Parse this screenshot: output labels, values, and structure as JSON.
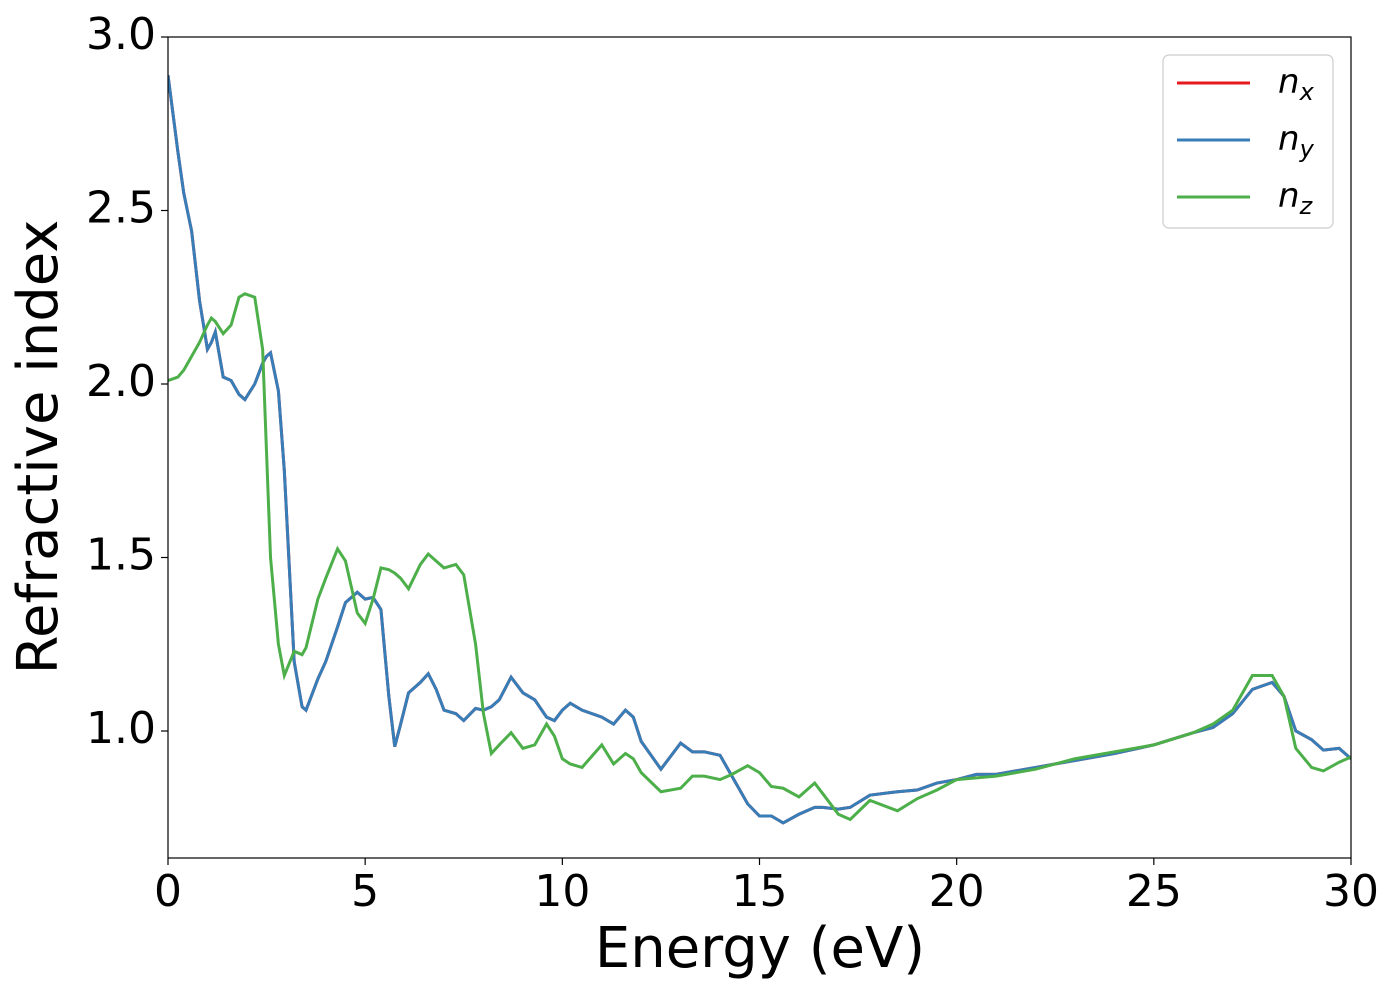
{
  "chart_data": {
    "type": "line",
    "xlabel": "Energy (eV)",
    "ylabel": "Refractive index",
    "xlim": [
      0,
      30
    ],
    "ylim": [
      0.634,
      3.0
    ],
    "xticks": [
      0,
      5,
      10,
      15,
      20,
      25,
      30
    ],
    "yticks": [
      {
        "value": 1,
        "label": "1.0"
      },
      {
        "value": 1.5,
        "label": "1.5"
      },
      {
        "value": 2,
        "label": "2.0"
      },
      {
        "value": 2.5,
        "label": "2.5"
      },
      {
        "value": 3,
        "label": "3.0"
      }
    ],
    "legend": "upper right",
    "grid": false,
    "x": [
      0,
      0.25,
      0.4,
      0.6,
      0.8,
      1.0,
      1.1,
      1.2,
      1.4,
      1.6,
      1.8,
      1.95,
      2.2,
      2.4,
      2.5,
      2.6,
      2.8,
      2.95,
      3.2,
      3.4,
      3.5,
      3.8,
      4.0,
      4.3,
      4.5,
      4.8,
      5.0,
      5.2,
      5.4,
      5.6,
      5.75,
      5.9,
      6.1,
      6.4,
      6.6,
      6.8,
      7.0,
      7.3,
      7.5,
      7.8,
      8.0,
      8.2,
      8.4,
      8.7,
      9.0,
      9.3,
      9.6,
      9.8,
      10.0,
      10.2,
      10.5,
      11.0,
      11.3,
      11.6,
      11.8,
      12.0,
      12.5,
      13.0,
      13.3,
      13.6,
      14.0,
      14.3,
      14.7,
      15.0,
      15.3,
      15.6,
      16.0,
      16.4,
      16.6,
      17.0,
      17.3,
      17.8,
      18.5,
      19.0,
      19.5,
      20.0,
      20.5,
      21.0,
      22.0,
      23.0,
      24.0,
      25.0,
      26.0,
      26.5,
      27.0,
      27.5,
      28.0,
      28.3,
      28.6,
      29.0,
      29.3,
      29.7,
      30.0
    ],
    "series": [
      {
        "name": "nx",
        "color": "#e41a1c",
        "values": [
          2.89,
          2.67,
          2.55,
          2.44,
          2.24,
          2.1,
          2.12,
          2.15,
          2.02,
          2.01,
          1.97,
          1.955,
          2.0,
          2.06,
          2.08,
          2.09,
          1.98,
          1.75,
          1.2,
          1.07,
          1.06,
          1.15,
          1.2,
          1.3,
          1.37,
          1.4,
          1.38,
          1.385,
          1.35,
          1.1,
          0.955,
          1.02,
          1.11,
          1.14,
          1.165,
          1.12,
          1.06,
          1.05,
          1.03,
          1.065,
          1.06,
          1.07,
          1.09,
          1.155,
          1.11,
          1.09,
          1.04,
          1.03,
          1.06,
          1.08,
          1.06,
          1.04,
          1.02,
          1.06,
          1.04,
          0.97,
          0.89,
          0.965,
          0.94,
          0.94,
          0.93,
          0.87,
          0.79,
          0.755,
          0.755,
          0.735,
          0.76,
          0.78,
          0.78,
          0.775,
          0.78,
          0.815,
          0.825,
          0.83,
          0.85,
          0.86,
          0.875,
          0.875,
          0.895,
          0.915,
          0.935,
          0.96,
          0.995,
          1.01,
          1.05,
          1.12,
          1.14,
          1.1,
          1.0,
          0.975,
          0.945,
          0.95,
          0.92
        ]
      },
      {
        "name": "ny",
        "color": "#377eb8",
        "values": [
          2.89,
          2.67,
          2.55,
          2.44,
          2.24,
          2.1,
          2.12,
          2.15,
          2.02,
          2.01,
          1.97,
          1.955,
          2.0,
          2.06,
          2.08,
          2.09,
          1.98,
          1.75,
          1.2,
          1.07,
          1.06,
          1.15,
          1.2,
          1.3,
          1.37,
          1.4,
          1.38,
          1.385,
          1.35,
          1.1,
          0.955,
          1.02,
          1.11,
          1.14,
          1.165,
          1.12,
          1.06,
          1.05,
          1.03,
          1.065,
          1.06,
          1.07,
          1.09,
          1.155,
          1.11,
          1.09,
          1.04,
          1.03,
          1.06,
          1.08,
          1.06,
          1.04,
          1.02,
          1.06,
          1.04,
          0.97,
          0.89,
          0.965,
          0.94,
          0.94,
          0.93,
          0.87,
          0.79,
          0.755,
          0.755,
          0.735,
          0.76,
          0.78,
          0.78,
          0.775,
          0.78,
          0.815,
          0.825,
          0.83,
          0.85,
          0.86,
          0.875,
          0.875,
          0.895,
          0.915,
          0.935,
          0.96,
          0.995,
          1.01,
          1.05,
          1.12,
          1.14,
          1.1,
          1.0,
          0.975,
          0.945,
          0.95,
          0.92
        ]
      },
      {
        "name": "nz",
        "color": "#4daf4a",
        "values": [
          2.01,
          2.02,
          2.04,
          2.08,
          2.12,
          2.17,
          2.19,
          2.18,
          2.145,
          2.17,
          2.25,
          2.26,
          2.25,
          2.1,
          1.8,
          1.5,
          1.25,
          1.16,
          1.23,
          1.22,
          1.24,
          1.38,
          1.44,
          1.525,
          1.49,
          1.34,
          1.31,
          1.38,
          1.47,
          1.465,
          1.455,
          1.44,
          1.41,
          1.48,
          1.51,
          1.49,
          1.47,
          1.48,
          1.45,
          1.25,
          1.05,
          0.935,
          0.96,
          0.995,
          0.95,
          0.96,
          1.02,
          0.985,
          0.92,
          0.905,
          0.895,
          0.96,
          0.905,
          0.935,
          0.92,
          0.88,
          0.825,
          0.835,
          0.87,
          0.87,
          0.86,
          0.875,
          0.9,
          0.88,
          0.84,
          0.835,
          0.81,
          0.85,
          0.82,
          0.76,
          0.745,
          0.8,
          0.77,
          0.805,
          0.83,
          0.86,
          0.865,
          0.87,
          0.89,
          0.92,
          0.94,
          0.96,
          0.995,
          1.02,
          1.06,
          1.16,
          1.16,
          1.1,
          0.95,
          0.895,
          0.885,
          0.91,
          0.925
        ]
      }
    ]
  }
}
